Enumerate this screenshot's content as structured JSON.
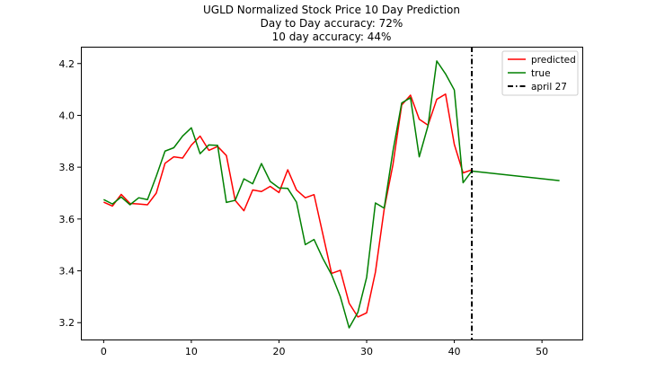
{
  "chart_data": {
    "type": "line",
    "title": "UGLD Normalized Stock Price 10 Day Prediction",
    "subtitle_lines": [
      "Day to Day accuracy: 72%",
      "10 day accuracy: 44%"
    ],
    "xlabel": "",
    "ylabel": "",
    "xlim": [
      -2.6,
      54.6
    ],
    "ylim": [
      3.135,
      4.265
    ],
    "xticks": [
      0,
      10,
      20,
      30,
      40,
      50
    ],
    "yticks": [
      3.2,
      3.4,
      3.6,
      3.8,
      4.0,
      4.2
    ],
    "ytick_labels": [
      "3.2",
      "3.4",
      "3.6",
      "3.8",
      "4.0",
      "4.2"
    ],
    "grid": false,
    "legend_position": "top-right",
    "series": [
      {
        "name": "predicted",
        "color": "#ff0000",
        "x": [
          0,
          1,
          2,
          3,
          4,
          5,
          6,
          7,
          8,
          9,
          10,
          11,
          12,
          13,
          14,
          15,
          16,
          17,
          18,
          19,
          20,
          21,
          22,
          23,
          24,
          25,
          26,
          27,
          28,
          29,
          30,
          31,
          32,
          33,
          34,
          35,
          36,
          37,
          38,
          39,
          40,
          41,
          42
        ],
        "values": [
          3.665,
          3.65,
          3.695,
          3.66,
          3.658,
          3.655,
          3.7,
          3.815,
          3.84,
          3.835,
          3.885,
          3.92,
          3.865,
          3.88,
          3.845,
          3.672,
          3.632,
          3.712,
          3.706,
          3.726,
          3.702,
          3.79,
          3.712,
          3.682,
          3.694,
          3.542,
          3.39,
          3.402,
          3.275,
          3.222,
          3.238,
          3.395,
          3.638,
          3.81,
          4.04,
          4.078,
          3.985,
          3.962,
          4.062,
          4.082,
          3.888,
          3.778,
          3.79
        ]
      },
      {
        "name": "true",
        "color": "#008000",
        "x": [
          0,
          1,
          2,
          3,
          4,
          5,
          6,
          7,
          8,
          9,
          10,
          11,
          12,
          13,
          14,
          15,
          16,
          17,
          18,
          19,
          20,
          21,
          22,
          23,
          24,
          25,
          26,
          27,
          28,
          29,
          30,
          31,
          32,
          33,
          34,
          35,
          36,
          37,
          38,
          39,
          40,
          41,
          42,
          52
        ],
        "values": [
          3.675,
          3.658,
          3.685,
          3.655,
          3.682,
          3.675,
          3.765,
          3.862,
          3.875,
          3.92,
          3.952,
          3.852,
          3.886,
          3.884,
          3.664,
          3.672,
          3.755,
          3.736,
          3.814,
          3.745,
          3.72,
          3.718,
          3.665,
          3.501,
          3.521,
          3.448,
          3.385,
          3.3,
          3.18,
          3.24,
          3.375,
          3.662,
          3.642,
          3.862,
          4.048,
          4.068,
          3.84,
          3.96,
          4.21,
          4.16,
          4.098,
          3.74,
          3.785,
          3.748
        ]
      }
    ],
    "vline": {
      "name": "april 27",
      "x": 42,
      "color": "#000000",
      "style": "dash-dot"
    }
  }
}
